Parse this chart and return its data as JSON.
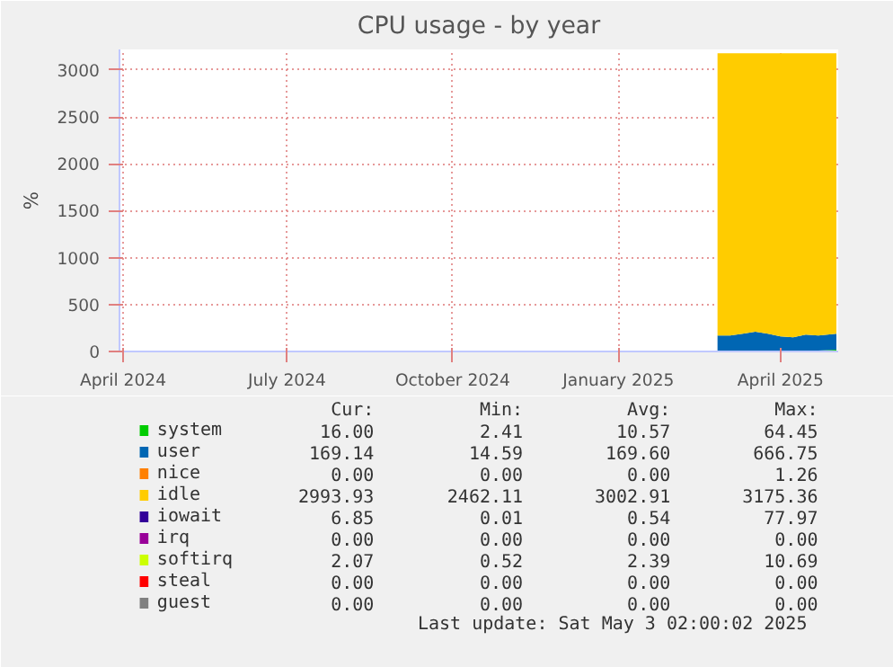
{
  "chart_data": {
    "type": "area",
    "stacked": true,
    "title": "CPU usage - by year",
    "ylabel": "%",
    "x": [
      "2025-02-25",
      "2025-03-04",
      "2025-03-11",
      "2025-03-18",
      "2025-03-25",
      "2025-04-01",
      "2025-04-08",
      "2025-04-15",
      "2025-04-22",
      "2025-05-02"
    ],
    "xlim": [
      "2024-03-30",
      "2025-05-03"
    ],
    "xticks": [
      {
        "value": "2024-04-01",
        "label": "April 2024"
      },
      {
        "value": "2024-07-01",
        "label": "July 2024"
      },
      {
        "value": "2024-10-01",
        "label": "October 2024"
      },
      {
        "value": "2025-01-01",
        "label": "January 2025"
      },
      {
        "value": "2025-04-01",
        "label": "April 2025"
      }
    ],
    "ylim": [
      0,
      3220
    ],
    "yticks": [
      0,
      500,
      1000,
      1500,
      2000,
      2500,
      3000
    ],
    "grid": true,
    "legend": "bottom",
    "series": [
      {
        "name": "system",
        "color": "#00cc00",
        "values": [
          10,
          10,
          10,
          10,
          10,
          10,
          10,
          10,
          10,
          20
        ]
      },
      {
        "name": "user",
        "color": "#0066b3",
        "values": [
          160,
          160,
          180,
          200,
          180,
          150,
          140,
          170,
          160,
          170
        ]
      },
      {
        "name": "nice",
        "color": "#ff8000",
        "values": [
          null,
          null,
          null,
          null,
          null,
          null,
          null,
          null,
          null,
          null
        ]
      },
      {
        "name": "idle",
        "color": "#ffcc00",
        "values": [
          3010,
          3010,
          2990,
          2970,
          2990,
          3020,
          3030,
          3000,
          3010,
          2990
        ]
      },
      {
        "name": "iowait",
        "color": "#330099",
        "values": [
          null,
          null,
          null,
          null,
          null,
          null,
          null,
          null,
          null,
          null
        ]
      },
      {
        "name": "irq",
        "color": "#990099",
        "values": [
          null,
          null,
          null,
          null,
          null,
          null,
          null,
          null,
          null,
          null
        ]
      },
      {
        "name": "softirq",
        "color": "#ccff00",
        "values": [
          null,
          null,
          null,
          null,
          null,
          null,
          null,
          null,
          null,
          null
        ]
      },
      {
        "name": "steal",
        "color": "#ff0000",
        "values": [
          null,
          null,
          null,
          null,
          null,
          null,
          null,
          null,
          null,
          null
        ]
      },
      {
        "name": "guest",
        "color": "#808080",
        "values": [
          null,
          null,
          null,
          null,
          null,
          null,
          null,
          null,
          null,
          null
        ]
      }
    ],
    "annotations": [
      "Cur:",
      "Min:",
      "Avg:",
      "Max:",
      "16.00",
      "2.41",
      "10.57",
      "64.45",
      "169.14",
      "14.59",
      "169.60",
      "666.75",
      "0.00",
      "0.00",
      "0.00",
      "1.26",
      "2993.93",
      "2462.11",
      "3002.91",
      "3175.36",
      "6.85",
      "0.01",
      "0.54",
      "77.97",
      "0.00",
      "0.00",
      "0.00",
      "0.00",
      "2.07",
      "0.52",
      "2.39",
      "10.69",
      "0.00",
      "0.00",
      "0.00",
      "0.00",
      "0.00",
      "0.00",
      "0.00",
      "0.00",
      "Last update: Sat May  3 02:00:02 2025"
    ]
  }
}
